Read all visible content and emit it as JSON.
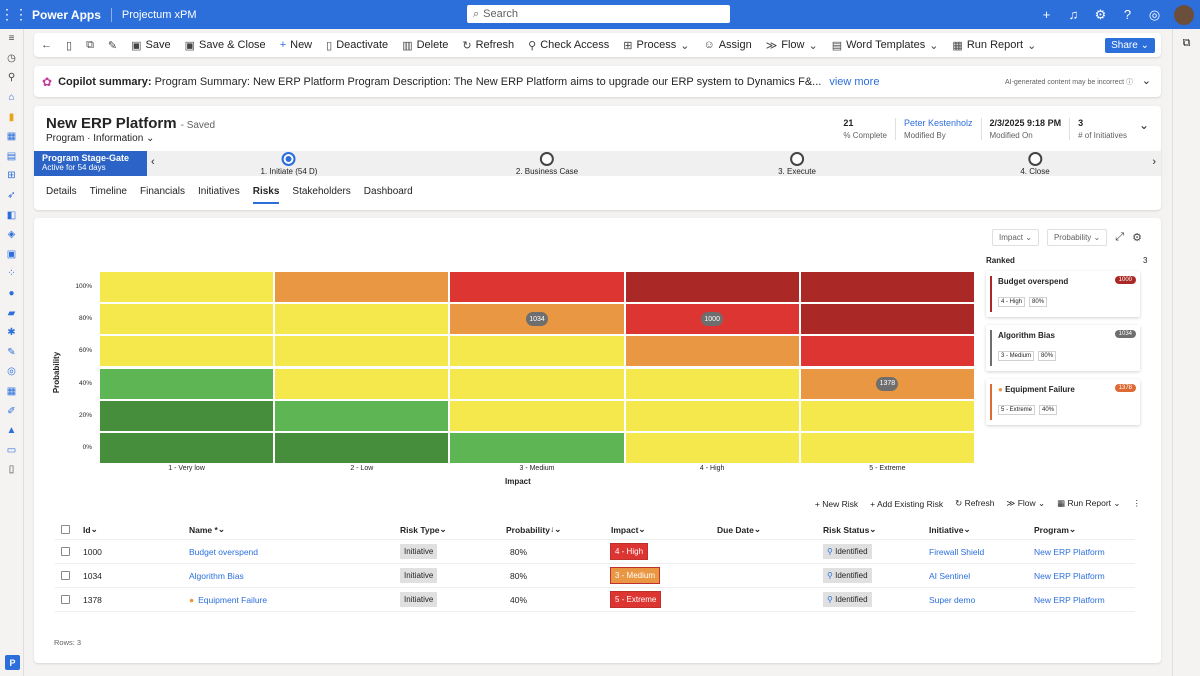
{
  "topbar": {
    "app_name": "Power Apps",
    "env_name": "Projectum xPM",
    "search_placeholder": "Search"
  },
  "commandbar": {
    "items": [
      "Save",
      "Save & Close",
      "New",
      "Deactivate",
      "Delete",
      "Refresh",
      "Check Access",
      "Process",
      "Assign",
      "Flow",
      "Word Templates",
      "Run Report"
    ],
    "share": "Share"
  },
  "copilot": {
    "label": "Copilot summary:",
    "text": "Program Summary: New ERP Platform Program Description: The New ERP Platform aims to upgrade our ERP system to Dynamics F&...",
    "view_more": "view more",
    "disclaimer": "AI-generated content may be incorrect"
  },
  "record": {
    "title": "New ERP Platform",
    "saved": "- Saved",
    "entity": "Program",
    "form": "Information",
    "fields": [
      {
        "value": "21",
        "label": "% Complete"
      },
      {
        "value": "Peter Kestenholz",
        "label": "Modified By"
      },
      {
        "value": "2/3/2025 9:18 PM",
        "label": "Modified On"
      },
      {
        "value": "3",
        "label": "# of Initiatives"
      }
    ]
  },
  "bpf": {
    "active_title": "Program Stage-Gate",
    "active_sub": "Active for 54 days",
    "stages": [
      "1. Initiate  (54 D)",
      "2. Business Case",
      "3. Execute",
      "4. Close"
    ]
  },
  "tabs": [
    "Details",
    "Timeline",
    "Financials",
    "Initiatives",
    "Risks",
    "Stakeholders",
    "Dashboard"
  ],
  "risk_panel": {
    "impact_dd": "Impact",
    "probability_dd": "Probability",
    "ranked_title": "Ranked",
    "ranked_count": "3",
    "y_axis_title": "Probability",
    "x_axis_title": "Impact",
    "y_labels": [
      "100%",
      "80%",
      "60%",
      "40%",
      "20%",
      "0%"
    ],
    "x_labels": [
      "1 - Very low",
      "2 - Low",
      "3 - Medium",
      "4 - High",
      "5 - Extreme"
    ],
    "colors": {
      "yellow": "#f5e84d",
      "orange": "#e99742",
      "red": "#dd3531",
      "darkred": "#aa2825",
      "green": "#5eb553",
      "darkgreen": "#468d3c"
    },
    "matrix": [
      [
        "yellow",
        "orange",
        "red",
        "darkred",
        "darkred"
      ],
      [
        "yellow",
        "yellow",
        "orange",
        "red",
        "darkred"
      ],
      [
        "yellow",
        "yellow",
        "yellow",
        "orange",
        "red"
      ],
      [
        "green",
        "yellow",
        "yellow",
        "yellow",
        "orange"
      ],
      [
        "darkgreen",
        "green",
        "yellow",
        "yellow",
        "yellow"
      ],
      [
        "darkgreen",
        "darkgreen",
        "green",
        "yellow",
        "yellow"
      ]
    ],
    "bubbles": [
      {
        "label": "1034",
        "impact": 3,
        "probability": "80%"
      },
      {
        "label": "1000",
        "impact": 4,
        "probability": "80%"
      },
      {
        "label": "1378",
        "impact": 5,
        "probability": "40%"
      }
    ],
    "ranked": [
      {
        "name": "Budget overspend",
        "id": "1000",
        "impact": "4 - High",
        "prob": "80%",
        "color": "#aa2825"
      },
      {
        "name": "Algorithm Bias",
        "id": "1034",
        "impact": "3 - Medium",
        "prob": "80%",
        "color": "#6e6e6e"
      },
      {
        "name": "Equipment Failure",
        "id": "1378",
        "impact": "5 - Extreme",
        "prob": "40%",
        "color": "#dd6b33"
      }
    ]
  },
  "grid_actions": [
    "New Risk",
    "Add Existing Risk",
    "Refresh",
    "Flow",
    "Run Report"
  ],
  "grid": {
    "columns": [
      "Id",
      "Name *",
      "Risk Type",
      "Probability",
      "Impact",
      "Due Date",
      "Risk Status",
      "Initiative",
      "Program"
    ],
    "rows": [
      {
        "id": "1000",
        "name": "Budget overspend",
        "type": "Initiative",
        "prob": "80%",
        "impact": "4 - High",
        "impact_color": "#dd3531",
        "status": "Identified",
        "initiative": "Firewall Shield",
        "program": "New ERP Platform"
      },
      {
        "id": "1034",
        "name": "Algorithm Bias",
        "type": "Initiative",
        "prob": "80%",
        "impact": "3 - Medium",
        "impact_color": "#e99742",
        "status": "Identified",
        "initiative": "AI Sentinel",
        "program": "New ERP Platform"
      },
      {
        "id": "1378",
        "name": "Equipment Failure",
        "type": "Initiative",
        "prob": "40%",
        "impact": "5 - Extreme",
        "impact_color": "#dd3531",
        "status": "Identified",
        "initiative": "Super demo",
        "program": "New ERP Platform"
      }
    ],
    "footer": "Rows: 3"
  }
}
